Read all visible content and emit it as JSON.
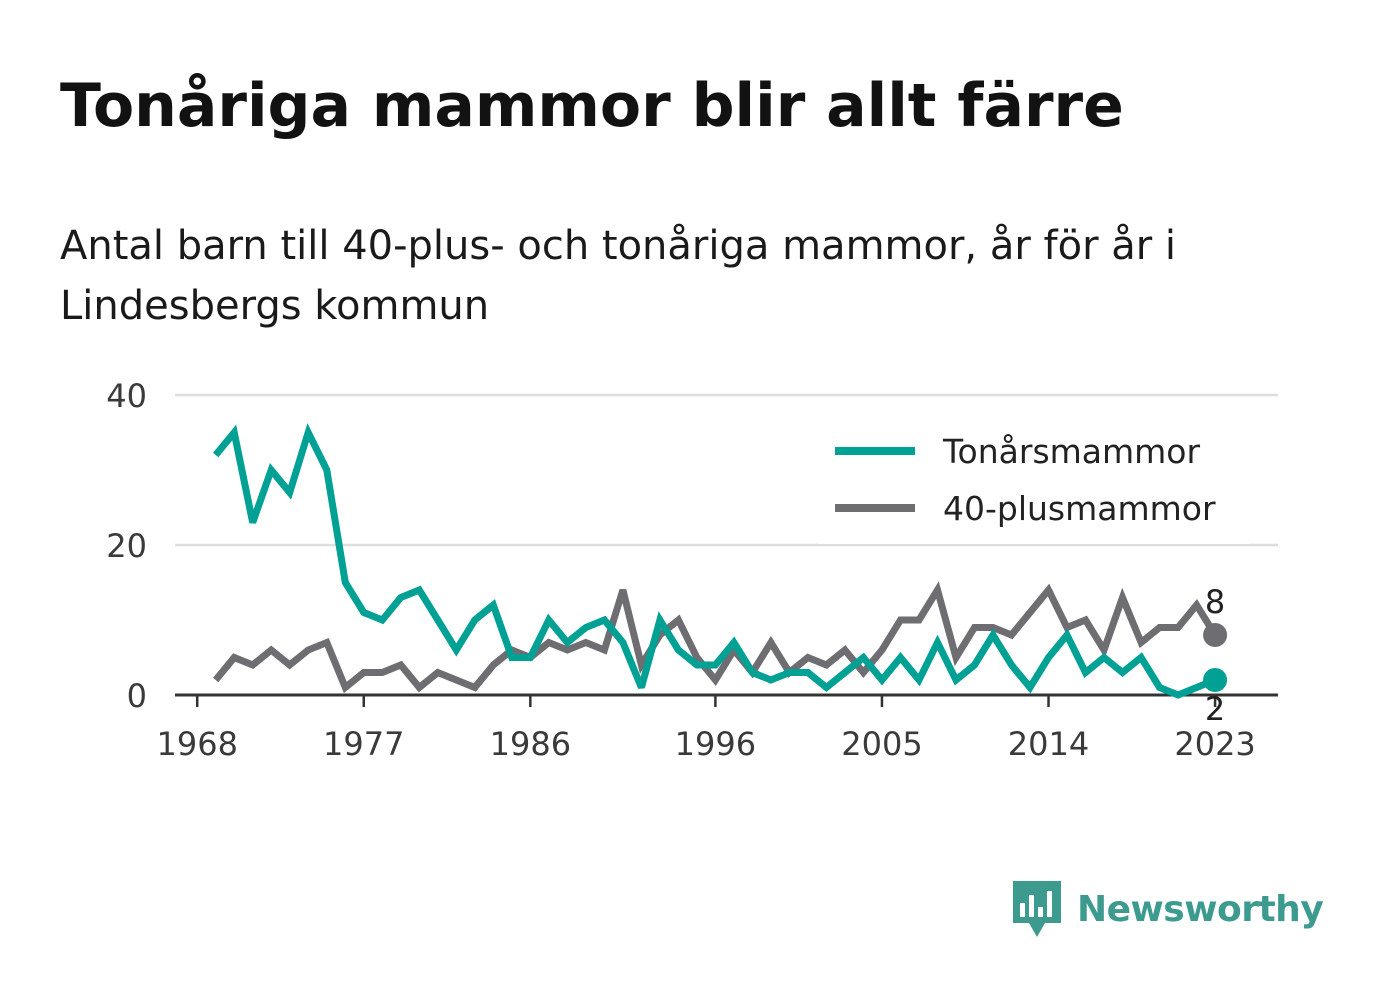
{
  "title": "Tonåriga mammor blir allt färre",
  "subtitle": "Antal barn till 40-plus- och tonåriga mammor, år för år i Lindesbergs kommun",
  "brand": {
    "name": "Newsworthy",
    "icon": "newsworthy-logo-icon",
    "color": "#3c9a8f"
  },
  "chart_data": {
    "type": "line",
    "x_ticks": [
      "1968",
      "1977",
      "1986",
      "1996",
      "2005",
      "2014",
      "2023"
    ],
    "y_ticks": [
      "0",
      "20",
      "40"
    ],
    "ylim": [
      0,
      40
    ],
    "xlim": [
      1966.8,
      2026.4
    ],
    "grid": true,
    "legend_position": "top-right",
    "x": [
      1969,
      1970,
      1971,
      1972,
      1973,
      1974,
      1975,
      1976,
      1977,
      1978,
      1979,
      1980,
      1981,
      1982,
      1983,
      1984,
      1985,
      1986,
      1987,
      1988,
      1989,
      1990,
      1991,
      1992,
      1993,
      1994,
      1995,
      1996,
      1997,
      1998,
      1999,
      2000,
      2001,
      2002,
      2003,
      2004,
      2005,
      2006,
      2007,
      2008,
      2009,
      2010,
      2011,
      2012,
      2013,
      2014,
      2015,
      2016,
      2017,
      2018,
      2019,
      2020,
      2021,
      2022,
      2023
    ],
    "series": [
      {
        "name": "Tonårsmammor",
        "color": "#00a195",
        "values": [
          32,
          35,
          23,
          30,
          27,
          35,
          30,
          15,
          11,
          10,
          13,
          14,
          10,
          6,
          10,
          12,
          5,
          5,
          10,
          7,
          9,
          10,
          7,
          1,
          10,
          6,
          4,
          4,
          7,
          3,
          2,
          3,
          3,
          1,
          3,
          5,
          2,
          5,
          2,
          7,
          2,
          4,
          8,
          4,
          1,
          5,
          8,
          3,
          5,
          3,
          5,
          1,
          0,
          1,
          2
        ],
        "last_label": "2"
      },
      {
        "name": "40-plusmammor",
        "color": "#6e6d72",
        "values": [
          2,
          5,
          4,
          6,
          4,
          6,
          7,
          1,
          3,
          3,
          4,
          1,
          3,
          2,
          1,
          4,
          6,
          5,
          7,
          6,
          7,
          6,
          14,
          4,
          8,
          10,
          5,
          2,
          6,
          3,
          7,
          3,
          5,
          4,
          6,
          3,
          6,
          10,
          10,
          14,
          5,
          9,
          9,
          8,
          11,
          14,
          9,
          10,
          6,
          13,
          7,
          9,
          9,
          12,
          8
        ],
        "last_label": "8"
      }
    ]
  }
}
